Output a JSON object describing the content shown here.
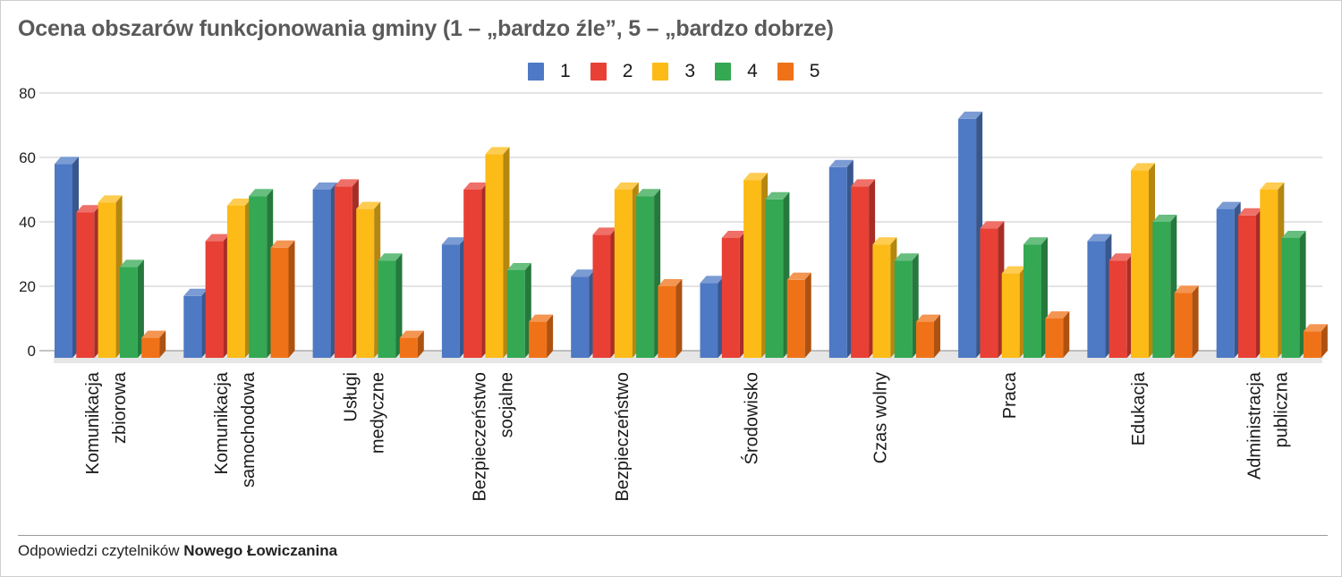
{
  "chart_data": {
    "type": "bar",
    "title": "Ocena obszarów funkcjonowania gminy (1 – „bardzo źle”, 5 – „bardzo dobrze)",
    "categories": [
      [
        "Komunikacja",
        "zbiorowa"
      ],
      [
        "Komunikacja",
        "samochodowa"
      ],
      [
        "Usługi",
        "medyczne"
      ],
      [
        "Bezpieczeństwo",
        "socjalne"
      ],
      [
        "Bezpieczeństwo"
      ],
      [
        "Środowisko"
      ],
      [
        "Czas wolny"
      ],
      [
        "Praca"
      ],
      [
        "Edukacja"
      ],
      [
        "Administracja",
        "publiczna"
      ]
    ],
    "series": [
      {
        "name": "1",
        "color": "#4e79c4",
        "values": [
          58,
          17,
          50,
          33,
          23,
          21,
          57,
          72,
          34,
          44
        ]
      },
      {
        "name": "2",
        "color": "#e84035",
        "values": [
          43,
          34,
          51,
          50,
          36,
          35,
          51,
          38,
          28,
          42
        ]
      },
      {
        "name": "3",
        "color": "#fcbb16",
        "values": [
          46,
          45,
          44,
          61,
          50,
          53,
          33,
          24,
          56,
          50
        ]
      },
      {
        "name": "4",
        "color": "#34a853",
        "values": [
          26,
          48,
          28,
          25,
          48,
          47,
          28,
          33,
          40,
          35
        ]
      },
      {
        "name": "5",
        "color": "#f07218",
        "values": [
          4,
          32,
          4,
          9,
          20,
          22,
          9,
          10,
          18,
          6
        ]
      }
    ],
    "yticks": [
      0,
      20,
      40,
      60,
      80
    ],
    "ylim": [
      0,
      80
    ],
    "grid": true,
    "legend_position": "top"
  },
  "footer": {
    "prefix": "Odpowiedzi czytelników",
    "brand": "Nowego Łowiczanina"
  }
}
